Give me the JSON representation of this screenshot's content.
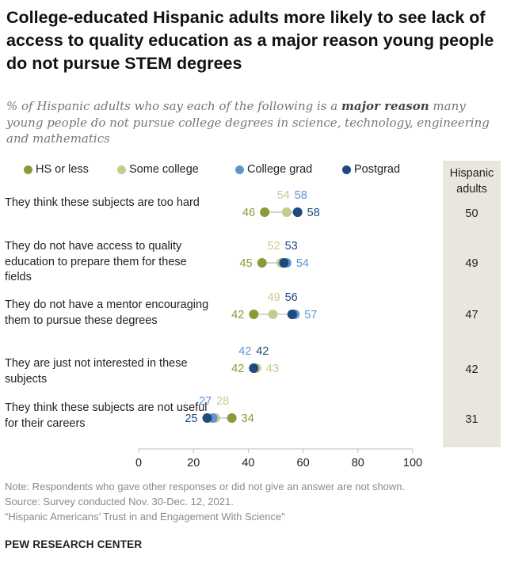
{
  "title": "College-educated Hispanic adults more likely to see lack of access to quality education as a major reason young people do not pursue STEM degrees",
  "subtitle_pre": "% of Hispanic adults who say each of the following is a ",
  "subtitle_bold": "major reason",
  "subtitle_post": " many young people do not pursue college degrees in science, technology, engineering and mathematics",
  "colors": {
    "hs_or_less": "#8a9a3b",
    "some_college": "#c5cc8e",
    "college_grad": "#5e93d3",
    "postgrad": "#1e4a80"
  },
  "chart_data": {
    "type": "scatter",
    "title": "College-educated Hispanic adults more likely to see lack of access to quality education as a major reason young people do not pursue STEM degrees",
    "xlim": [
      0,
      100
    ],
    "x_ticks": [
      "0",
      "20",
      "40",
      "60",
      "80",
      "100"
    ],
    "legend": [
      "HS or less",
      "Some college",
      "College grad",
      "Postgrad"
    ],
    "categories": [
      "They think these subjects are too hard",
      "They do not have access to quality education to prepare them for these fields",
      "They do not have a mentor encouraging them to pursue these degrees",
      "They are just not interested in these subjects",
      "They think these subjects are not useful for their careers"
    ],
    "series": [
      {
        "name": "HS or less",
        "values": [
          46,
          45,
          42,
          42,
          34
        ]
      },
      {
        "name": "Some college",
        "values": [
          54,
          52,
          49,
          43,
          28
        ]
      },
      {
        "name": "College grad",
        "values": [
          58,
          54,
          57,
          42,
          27
        ]
      },
      {
        "name": "Postgrad",
        "values": [
          58,
          53,
          56,
          42,
          25
        ]
      }
    ],
    "hispanic_adults_header": "Hispanic adults",
    "hispanic_adults": [
      "50",
      "49",
      "47",
      "42",
      "31"
    ]
  },
  "footer": {
    "note": "Note: Respondents who gave other responses or did not give an answer are not shown.",
    "source": "Source: Survey conducted Nov. 30-Dec. 12, 2021.",
    "report": "“Hispanic Americans’ Trust in and Engagement With Science”",
    "brand": "PEW RESEARCH CENTER"
  }
}
